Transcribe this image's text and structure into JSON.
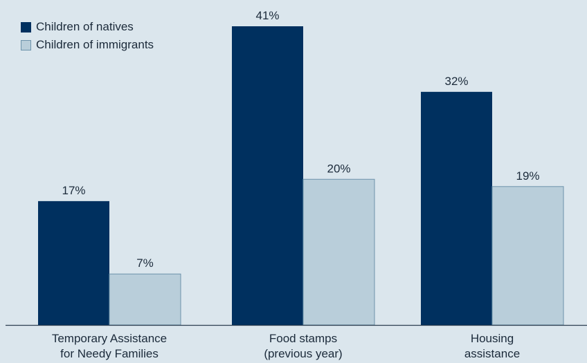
{
  "chart_data": {
    "type": "bar",
    "categories": [
      [
        "Temporary Assistance",
        "for Needy Families"
      ],
      [
        "Food stamps",
        "(previous year)"
      ],
      [
        "Housing",
        "assistance"
      ]
    ],
    "series": [
      {
        "name": "Children of natives",
        "values": [
          17,
          41,
          32
        ],
        "labels": [
          "17%",
          "41%",
          "32%"
        ],
        "color": "#00305f"
      },
      {
        "name": "Children of immigrants",
        "values": [
          7,
          20,
          19
        ],
        "labels": [
          "7%",
          "20%",
          "19%"
        ],
        "color": "#b9ceda",
        "stroke": "#6d93ab"
      }
    ],
    "ylim": [
      0,
      41
    ],
    "legend_position": "top-left",
    "grid": false
  }
}
